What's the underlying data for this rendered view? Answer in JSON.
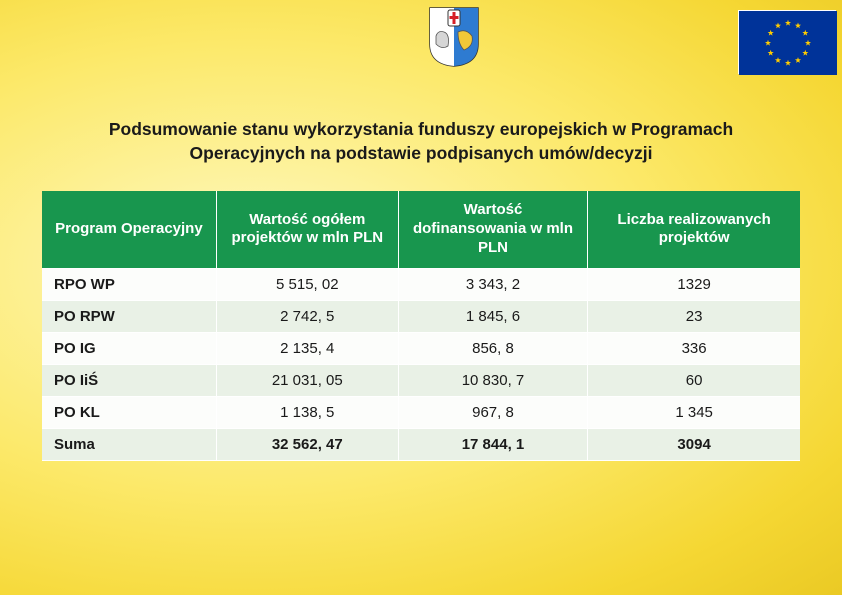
{
  "title_line1": "Podsumowanie stanu wykorzystania funduszy europejskich w Programach",
  "title_line2": "Operacyjnych na podstawie podpisanych umów/decyzji",
  "table": {
    "columns": [
      "Program Operacyjny",
      "Wartość ogółem projektów w mln PLN",
      "Wartość dofinansowania w mln PLN",
      "Liczba realizowanych projektów"
    ],
    "rows": [
      [
        "RPO WP",
        "5 515, 02",
        "3 343, 2",
        "1329"
      ],
      [
        "PO RPW",
        "2 742, 5",
        "1 845, 6",
        "23"
      ],
      [
        "PO IG",
        "2 135, 4",
        "856, 8",
        "336"
      ],
      [
        "PO IiŚ",
        "21 031, 05",
        "10 830, 7",
        "60"
      ],
      [
        "PO KL",
        "1 138, 5",
        "967, 8",
        "1 345"
      ],
      [
        "Suma",
        "32 562, 47",
        "17 844, 1",
        "3094"
      ]
    ],
    "header_bg": "#18964e",
    "header_fg": "#ffffff",
    "row_odd_bg": "#fcfdfb",
    "row_even_bg": "#e9f1e6"
  },
  "eu_flag": {
    "bg": "#003399",
    "star": "#ffcc00"
  },
  "coat_colors": {
    "left": "#d61f26",
    "right": "#2e7bd1",
    "cross": "#d61f26",
    "outline": "#333333"
  }
}
